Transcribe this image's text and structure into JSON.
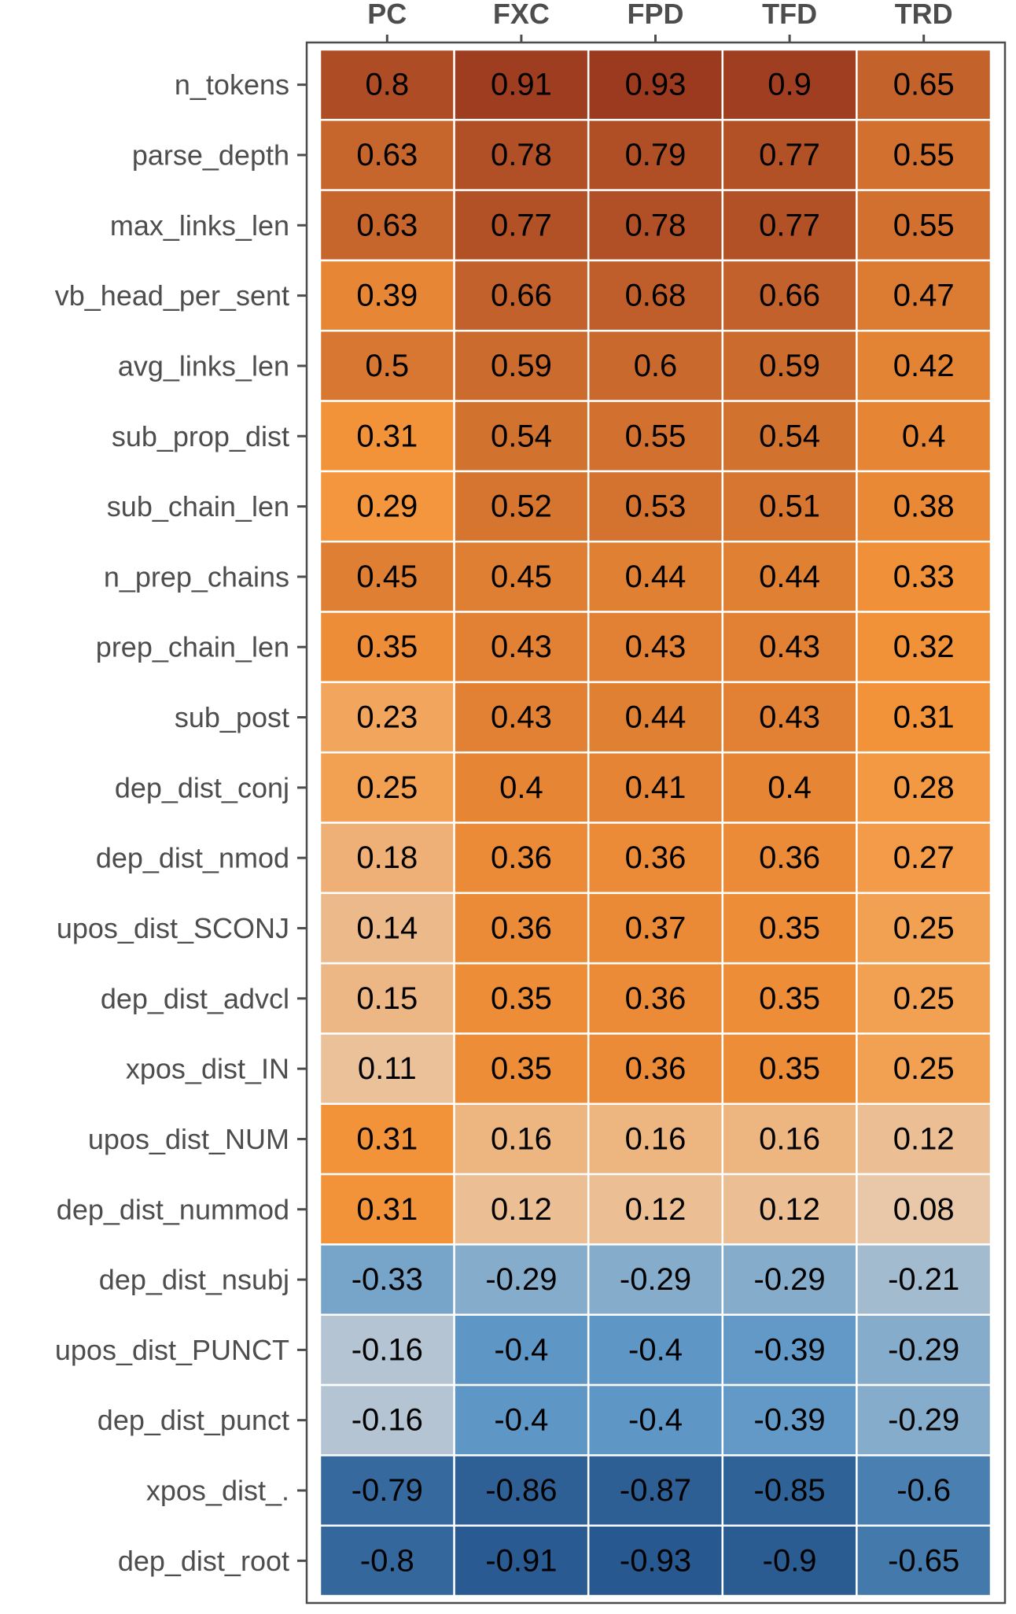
{
  "chart_data": {
    "type": "heatmap",
    "title": "",
    "xlabel": "",
    "ylabel": "",
    "columns": [
      "PC",
      "FXC",
      "FPD",
      "TFD",
      "TRD"
    ],
    "rows": [
      "n_tokens",
      "parse_depth",
      "max_links_len",
      "vb_head_per_sent",
      "avg_links_len",
      "sub_prop_dist",
      "sub_chain_len",
      "n_prep_chains",
      "prep_chain_len",
      "sub_post",
      "dep_dist_conj",
      "dep_dist_nmod",
      "upos_dist_SCONJ",
      "dep_dist_advcl",
      "xpos_dist_IN",
      "upos_dist_NUM",
      "dep_dist_nummod",
      "dep_dist_nsubj",
      "upos_dist_PUNCT",
      "dep_dist_punct",
      "xpos_dist_.",
      "dep_dist_root"
    ],
    "values": [
      [
        0.8,
        0.91,
        0.93,
        0.9,
        0.65
      ],
      [
        0.63,
        0.78,
        0.79,
        0.77,
        0.55
      ],
      [
        0.63,
        0.77,
        0.78,
        0.77,
        0.55
      ],
      [
        0.39,
        0.66,
        0.68,
        0.66,
        0.47
      ],
      [
        0.5,
        0.59,
        0.6,
        0.59,
        0.42
      ],
      [
        0.31,
        0.54,
        0.55,
        0.54,
        0.4
      ],
      [
        0.29,
        0.52,
        0.53,
        0.51,
        0.38
      ],
      [
        0.45,
        0.45,
        0.44,
        0.44,
        0.33
      ],
      [
        0.35,
        0.43,
        0.43,
        0.43,
        0.32
      ],
      [
        0.23,
        0.43,
        0.44,
        0.43,
        0.31
      ],
      [
        0.25,
        0.4,
        0.41,
        0.4,
        0.28
      ],
      [
        0.18,
        0.36,
        0.36,
        0.36,
        0.27
      ],
      [
        0.14,
        0.36,
        0.37,
        0.35,
        0.25
      ],
      [
        0.15,
        0.35,
        0.36,
        0.35,
        0.25
      ],
      [
        0.11,
        0.35,
        0.36,
        0.35,
        0.25
      ],
      [
        0.31,
        0.16,
        0.16,
        0.16,
        0.12
      ],
      [
        0.31,
        0.12,
        0.12,
        0.12,
        0.08
      ],
      [
        -0.33,
        -0.29,
        -0.29,
        -0.29,
        -0.21
      ],
      [
        -0.16,
        -0.4,
        -0.4,
        -0.39,
        -0.29
      ],
      [
        -0.16,
        -0.4,
        -0.4,
        -0.39,
        -0.29
      ],
      [
        -0.79,
        -0.86,
        -0.87,
        -0.85,
        -0.6
      ],
      [
        -0.8,
        -0.91,
        -0.93,
        -0.9,
        -0.65
      ]
    ],
    "labels": [
      [
        "0.8",
        "0.91",
        "0.93",
        "0.9",
        "0.65"
      ],
      [
        "0.63",
        "0.78",
        "0.79",
        "0.77",
        "0.55"
      ],
      [
        "0.63",
        "0.77",
        "0.78",
        "0.77",
        "0.55"
      ],
      [
        "0.39",
        "0.66",
        "0.68",
        "0.66",
        "0.47"
      ],
      [
        "0.5",
        "0.59",
        "0.6",
        "0.59",
        "0.42"
      ],
      [
        "0.31",
        "0.54",
        "0.55",
        "0.54",
        "0.4"
      ],
      [
        "0.29",
        "0.52",
        "0.53",
        "0.51",
        "0.38"
      ],
      [
        "0.45",
        "0.45",
        "0.44",
        "0.44",
        "0.33"
      ],
      [
        "0.35",
        "0.43",
        "0.43",
        "0.43",
        "0.32"
      ],
      [
        "0.23",
        "0.43",
        "0.44",
        "0.43",
        "0.31"
      ],
      [
        "0.25",
        "0.4",
        "0.41",
        "0.4",
        "0.28"
      ],
      [
        "0.18",
        "0.36",
        "0.36",
        "0.36",
        "0.27"
      ],
      [
        "0.14",
        "0.36",
        "0.37",
        "0.35",
        "0.25"
      ],
      [
        "0.15",
        "0.35",
        "0.36",
        "0.35",
        "0.25"
      ],
      [
        "0.11",
        "0.35",
        "0.36",
        "0.35",
        "0.25"
      ],
      [
        "0.31",
        "0.16",
        "0.16",
        "0.16",
        "0.12"
      ],
      [
        "0.31",
        "0.12",
        "0.12",
        "0.12",
        "0.08"
      ],
      [
        "-0.33",
        "-0.29",
        "-0.29",
        "-0.29",
        "-0.21"
      ],
      [
        "-0.16",
        "-0.4",
        "-0.4",
        "-0.39",
        "-0.29"
      ],
      [
        "-0.16",
        "-0.4",
        "-0.4",
        "-0.39",
        "-0.29"
      ],
      [
        "-0.79",
        "-0.86",
        "-0.87",
        "-0.85",
        "-0.6"
      ],
      [
        "-0.8",
        "-0.91",
        "-0.93",
        "-0.9",
        "-0.65"
      ]
    ],
    "x_axis_position": "top",
    "legend": "none",
    "grid": false,
    "color_scale": {
      "negative_high": "#27588f",
      "negative_mid": "#5e97c6",
      "negative_low": "#b8c6d2",
      "positive_low": "#e8cfb8",
      "positive_mid": "#f49439",
      "positive_high": "#9c3a20"
    }
  }
}
